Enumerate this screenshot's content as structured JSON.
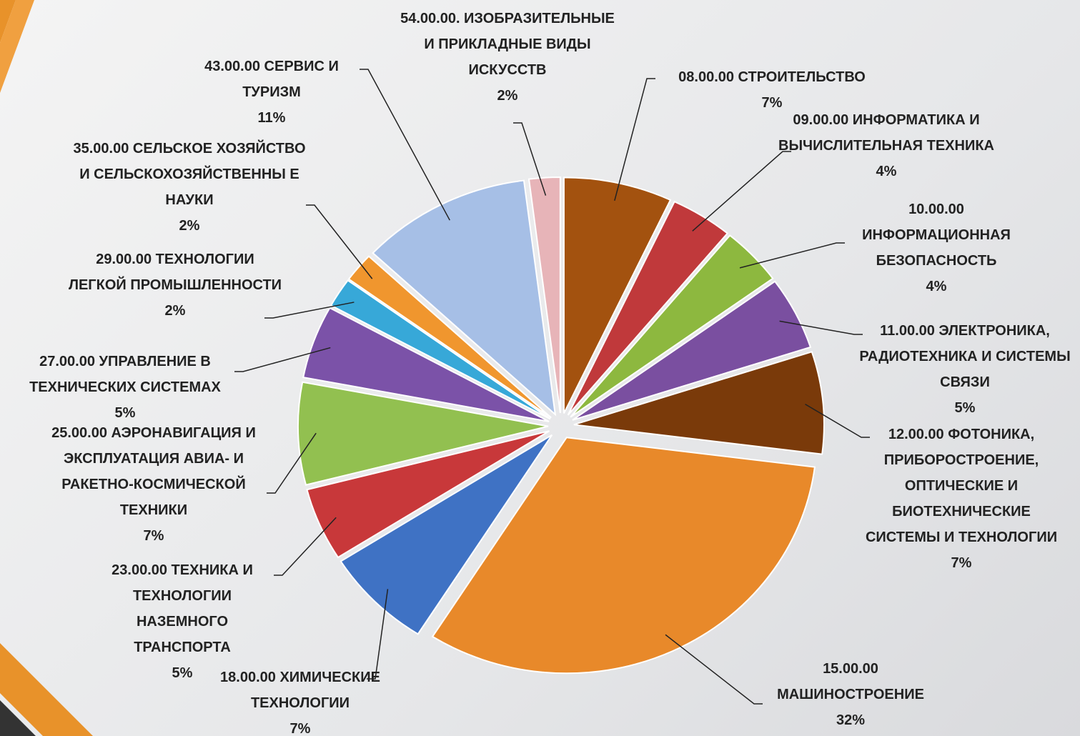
{
  "chart_data": {
    "type": "pie",
    "categories": [
      "08.00.00 СТРОИТЕЛЬСТВО",
      "09.00.00 ИНФОРМАТИКА И ВЫЧИСЛИТЕЛЬНАЯ ТЕХНИКА",
      "10.00.00 ИНФОРМАЦИОННАЯ БЕЗОПАСНОСТЬ",
      "11.00.00 ЭЛЕКТРОНИКА, РАДИОТЕХНИКА И СИСТЕМЫ СВЯЗИ",
      "12.00.00 ФОТОНИКА, ПРИБОРОСТРОЕНИЕ, ОПТИЧЕСКИЕ И БИОТЕХНИЧЕСКИЕ СИСТЕМЫ И ТЕХНОЛОГИИ",
      "15.00.00 МАШИНОСТРОЕНИЕ",
      "18.00.00 ХИМИЧЕСКИЕ ТЕХНОЛОГИИ",
      "23.00.00 ТЕХНИКА И ТЕХНОЛОГИИ НАЗЕМНОГО ТРАНСПОРТА",
      "25.00.00 АЭРОНАВИГАЦИЯ И ЭКСПЛУАТАЦИЯ АВИА- И РАКЕТНО-КОСМИЧЕСКОЙ ТЕХНИКИ",
      "27.00.00 УПРАВЛЕНИЕ В ТЕХНИЧЕСКИХ СИСТЕМАХ",
      "29.00.00 ТЕХНОЛОГИИ ЛЕГКОЙ ПРОМЫШЛЕННОСТИ",
      "35.00.00 СЕЛЬСКОЕ ХОЗЯЙСТВО И СЕЛЬСКОХОЗЯЙСТВЕННЫ Е НАУКИ",
      "43.00.00 СЕРВИС И ТУРИЗМ",
      "54.00.00. ИЗОБРАЗИТЕЛЬНЫЕ И ПРИКЛАДНЫЕ ВИДЫ ИСКУССТВ"
    ],
    "values": [
      7,
      4,
      4,
      5,
      7,
      32,
      7,
      5,
      7,
      5,
      2,
      2,
      11,
      2
    ],
    "value_labels": [
      "7%",
      "4%",
      "4%",
      "5%",
      "7%",
      "32%",
      "7%",
      "5%",
      "7%",
      "5%",
      "2%",
      "2%",
      "11%",
      "2%"
    ],
    "colors": [
      "#a3520f",
      "#c0393b",
      "#8db83f",
      "#7a4fa0",
      "#7a3a0a",
      "#e8892a",
      "#3f72c4",
      "#c8383a",
      "#92c050",
      "#7b52a8",
      "#37a8d8",
      "#f0962e",
      "#a6bfe6",
      "#e7b4b8"
    ]
  }
}
